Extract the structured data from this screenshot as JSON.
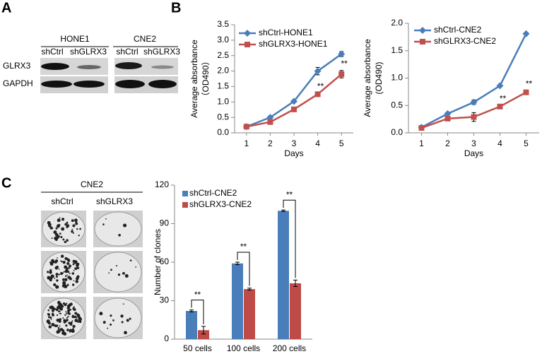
{
  "panel_labels": [
    "A",
    "B",
    "C"
  ],
  "blot": {
    "groups": [
      "HONE1",
      "CNE2"
    ],
    "lanes": [
      "shCtrl",
      "shGLRX3",
      "shCtrl",
      "shGLRX3"
    ],
    "rows": [
      "GLRX3",
      "GAPDH"
    ]
  },
  "colony": {
    "title": "CNE2",
    "columns": [
      "shCtrl",
      "shGLRX3"
    ]
  },
  "chart_data": [
    {
      "type": "line",
      "xlabel": "Days",
      "ylabel": [
        "Average absorbance",
        "（OD490）"
      ],
      "x": [
        1,
        2,
        3,
        4,
        5
      ],
      "xlim": [
        0.5,
        5.5
      ],
      "xticks": [
        1,
        2,
        3,
        4,
        5
      ],
      "ylim": [
        0,
        3.5
      ],
      "yticks": [
        {
          "value": 0,
          "label": "0.0"
        },
        0.5,
        {
          "value": 1,
          "label": "1.0"
        },
        1.5,
        {
          "value": 2,
          "label": "2.0"
        },
        2.5,
        {
          "value": 3,
          "label": "3.0"
        },
        3.5
      ],
      "series": [
        {
          "name": "shCtrl-HONE1",
          "color": "#4a7ebb",
          "marker": "diamond",
          "values": [
            0.2,
            0.5,
            1.02,
            2.0,
            2.55
          ],
          "errors": [
            0.02,
            0.03,
            0.03,
            0.12,
            0.08
          ]
        },
        {
          "name": "shGLRX3-HONE1",
          "color": "#c0504d",
          "marker": "square",
          "values": [
            0.2,
            0.35,
            0.76,
            1.25,
            1.9
          ],
          "errors": [
            0.02,
            0.02,
            0.03,
            0.04,
            0.12
          ]
        }
      ],
      "significance": [
        null,
        null,
        null,
        "**",
        "**"
      ]
    },
    {
      "type": "line",
      "xlabel": "Days",
      "ylabel": [
        "Average absorbance",
        "(OD490)"
      ],
      "x": [
        1,
        2,
        3,
        4,
        5
      ],
      "xlim": [
        0.5,
        5.5
      ],
      "xticks": [
        1,
        2,
        3,
        4,
        5
      ],
      "ylim": [
        0,
        2.0
      ],
      "yticks": [
        {
          "value": 0,
          "label": "0.0"
        },
        0.5,
        {
          "value": 1,
          "label": "1.0"
        },
        1.5,
        {
          "value": 2,
          "label": "2.0"
        }
      ],
      "series": [
        {
          "name": "shCtrl-CNE2",
          "color": "#4a7ebb",
          "marker": "diamond",
          "values": [
            0.1,
            0.35,
            0.56,
            0.86,
            1.81
          ],
          "errors": [
            0.01,
            0.02,
            0.04,
            0.02,
            0.01
          ]
        },
        {
          "name": "shGLRX3-CNE2",
          "color": "#c0504d",
          "marker": "square",
          "values": [
            0.09,
            0.26,
            0.29,
            0.48,
            0.74
          ],
          "errors": [
            0.01,
            0.02,
            0.08,
            0.02,
            0.03
          ]
        }
      ],
      "significance": [
        null,
        null,
        null,
        "**",
        "**"
      ]
    },
    {
      "type": "bar",
      "ylabel": "Number of clones",
      "categories": [
        "50 cells",
        "100 cells",
        "200 cells"
      ],
      "ylim": [
        0,
        120
      ],
      "yticks": [
        0,
        30,
        60,
        90,
        120
      ],
      "series": [
        {
          "name": "shCtrl-CNE2",
          "color": "#4a7ebb",
          "values": [
            22,
            59,
            100
          ],
          "errors": [
            0.8,
            1,
            0.6
          ]
        },
        {
          "name": "shGLRX3-CNE2",
          "color": "#be4b48",
          "values": [
            7,
            39,
            43.5
          ],
          "errors": [
            3,
            0.8,
            2.5
          ]
        }
      ],
      "significance": [
        "**",
        "**",
        "**"
      ]
    }
  ]
}
